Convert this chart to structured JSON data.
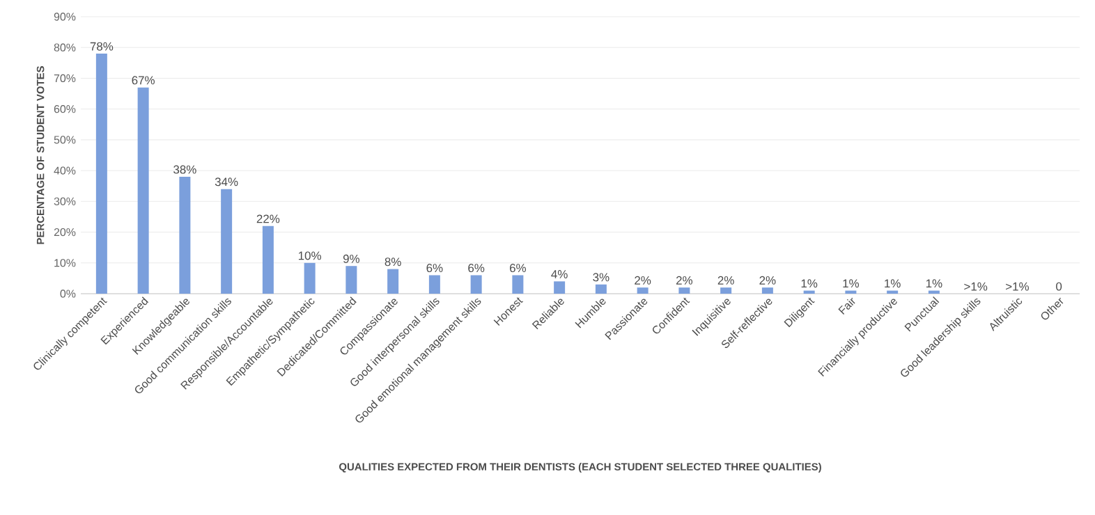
{
  "chart_data": {
    "type": "bar",
    "xlabel": "QUALITIES EXPECTED FROM THEIR DENTISTS (EACH STUDENT SELECTED THREE QUALITIES)",
    "ylabel": "PERCENTAGE OF STUDENT VOTES",
    "categories": [
      "Clinically competent",
      "Experienced",
      "Knowledgeable",
      "Good communication skills",
      "Responsible/Accountable",
      "Empathetic/Sympathetic",
      "Dedicated/Committed",
      "Compassionate",
      "Good interpersonal skills",
      "Good emotional management skills",
      "Honest",
      "Reliable",
      "Humble",
      "Passionate",
      "Confident",
      "Inquisitive",
      "Self-reflective",
      "Diligent",
      "Fair",
      "Financially productive",
      "Punctual",
      "Good leadership skills",
      "Altruistic",
      "Other"
    ],
    "values": [
      78,
      67,
      38,
      34,
      22,
      10,
      9,
      8,
      6,
      6,
      6,
      4,
      3,
      2,
      2,
      2,
      2,
      1,
      1,
      1,
      1,
      0,
      0,
      0
    ],
    "value_labels": [
      "78%",
      "67%",
      "38%",
      "34%",
      "22%",
      "10%",
      "9%",
      "8%",
      "6%",
      "6%",
      "6%",
      "4%",
      "3%",
      "2%",
      "2%",
      "2%",
      "2%",
      "1%",
      "1%",
      "1%",
      "1%",
      ">1%",
      ">1%",
      "0"
    ],
    "color": "#7b9fdc",
    "ylim": [
      0,
      90
    ],
    "yticks": [
      {
        "value": 0,
        "label": "0%"
      },
      {
        "value": 10,
        "label": "10%"
      },
      {
        "value": 20,
        "label": "20%"
      },
      {
        "value": 30,
        "label": "30%"
      },
      {
        "value": 40,
        "label": "40%"
      },
      {
        "value": 50,
        "label": "50%"
      },
      {
        "value": 60,
        "label": "60%"
      },
      {
        "value": 70,
        "label": "70%"
      },
      {
        "value": 80,
        "label": "80%"
      },
      {
        "value": 90,
        "label": "90%"
      }
    ],
    "grid": "y"
  }
}
